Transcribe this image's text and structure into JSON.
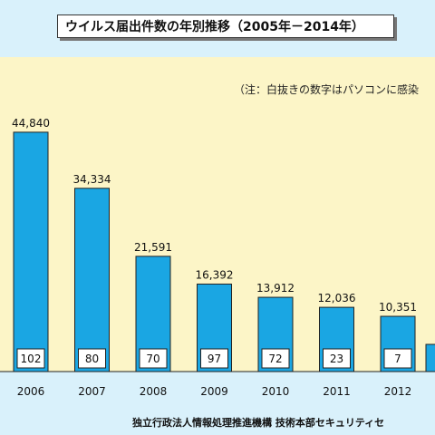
{
  "title": "ウイルス届出件数の年別推移（2005年－2014年）",
  "note": "（注：白抜きの数字はパソコンに感染",
  "footer": "独立行政法人情報処理推進機構 技術本部セキュリティセ",
  "colors": {
    "bar": "#1aa6e3",
    "bar_border": "#222222",
    "plot_bg": "#fcf5c7",
    "page_bg": "#d9f1fb"
  },
  "chart_data": {
    "type": "bar",
    "title": "ウイルス届出件数の年別推移（2005年－2014年）",
    "categories": [
      "2006",
      "2007",
      "2008",
      "2009",
      "2010",
      "2011",
      "2012"
    ],
    "series": [
      {
        "values": [
          44840,
          34334,
          21591,
          16392,
          13912,
          12036,
          10351
        ]
      },
      {
        "values": [
          102,
          80,
          70,
          97,
          72,
          23,
          7
        ]
      }
    ],
    "value_labels": [
      "44,840",
      "34,334",
      "21,591",
      "16,392",
      "13,912",
      "12,036",
      "10,351"
    ],
    "infected_labels": [
      "102",
      "80",
      "70",
      "97",
      "72",
      "23",
      "7"
    ],
    "ylim": [
      0,
      50000
    ],
    "grid": false,
    "xlabel": "",
    "ylabel": ""
  }
}
